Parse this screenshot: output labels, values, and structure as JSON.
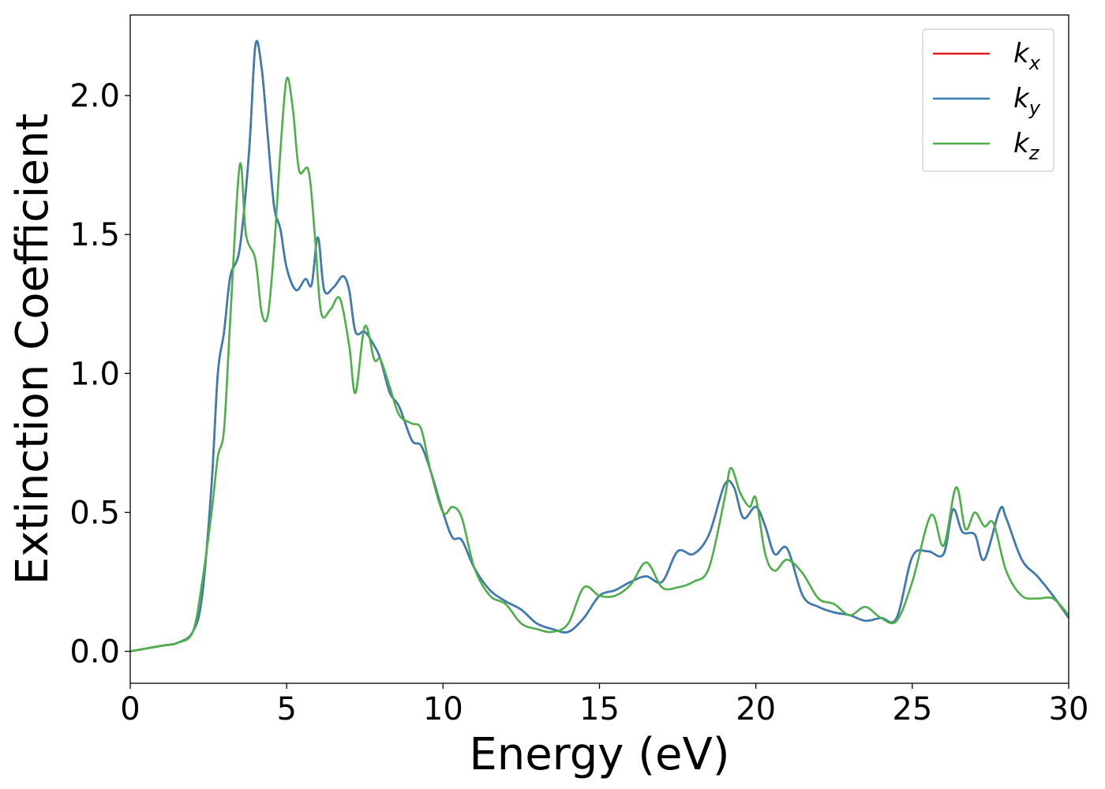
{
  "chart_data": {
    "type": "line",
    "xlabel": "Energy (eV)",
    "ylabel": "Extinction Coefficient",
    "xlim": [
      0,
      30
    ],
    "ylim": [
      -0.115,
      2.29
    ],
    "x_ticks": [
      "0",
      "5",
      "10",
      "15",
      "20",
      "25",
      "30"
    ],
    "y_ticks": [
      "0.0",
      "0.5",
      "1.0",
      "1.5",
      "2.0"
    ],
    "grid": false,
    "legend_position": "top-right",
    "series": [
      {
        "name": "k_x",
        "legend_base": "k",
        "legend_sub": "x",
        "color": "#e41a1c",
        "x": [
          0,
          1,
          1.5,
          2,
          2.3,
          2.6,
          2.8,
          3.0,
          3.2,
          3.5,
          3.8,
          4.0,
          4.2,
          4.4,
          4.6,
          4.8,
          5.0,
          5.3,
          5.6,
          5.8,
          6.0,
          6.2,
          6.5,
          6.8,
          7.0,
          7.2,
          7.5,
          7.8,
          8.0,
          8.3,
          8.6,
          9.0,
          9.3,
          9.6,
          10.0,
          10.3,
          10.6,
          11.0,
          11.5,
          12.0,
          12.5,
          13.0,
          13.5,
          14.0,
          14.5,
          15.0,
          15.5,
          16.0,
          16.5,
          17.0,
          17.5,
          18.0,
          18.5,
          19.0,
          19.3,
          19.6,
          20.0,
          20.3,
          20.6,
          21.0,
          21.5,
          22.0,
          22.5,
          23.0,
          23.5,
          24.0,
          24.5,
          25.0,
          25.5,
          26.0,
          26.3,
          26.6,
          27.0,
          27.3,
          27.8,
          28.0,
          28.5,
          29.0,
          29.5,
          30.0
        ],
        "y": [
          0.0,
          0.02,
          0.03,
          0.07,
          0.2,
          0.6,
          1.0,
          1.15,
          1.35,
          1.45,
          1.8,
          2.18,
          2.1,
          1.85,
          1.6,
          1.52,
          1.38,
          1.3,
          1.34,
          1.32,
          1.49,
          1.3,
          1.31,
          1.35,
          1.3,
          1.15,
          1.15,
          1.1,
          1.05,
          0.93,
          0.88,
          0.76,
          0.74,
          0.65,
          0.5,
          0.41,
          0.4,
          0.3,
          0.22,
          0.18,
          0.15,
          0.1,
          0.08,
          0.07,
          0.12,
          0.2,
          0.22,
          0.25,
          0.27,
          0.25,
          0.36,
          0.35,
          0.42,
          0.6,
          0.59,
          0.48,
          0.52,
          0.45,
          0.35,
          0.37,
          0.2,
          0.16,
          0.14,
          0.13,
          0.11,
          0.12,
          0.12,
          0.34,
          0.36,
          0.35,
          0.51,
          0.43,
          0.42,
          0.33,
          0.51,
          0.48,
          0.33,
          0.27,
          0.2,
          0.12
        ]
      },
      {
        "name": "k_y",
        "legend_base": "k",
        "legend_sub": "y",
        "color": "#377eb8",
        "x": [
          0,
          1,
          1.5,
          2,
          2.3,
          2.6,
          2.8,
          3.0,
          3.2,
          3.5,
          3.8,
          4.0,
          4.2,
          4.4,
          4.6,
          4.8,
          5.0,
          5.3,
          5.6,
          5.8,
          6.0,
          6.2,
          6.5,
          6.8,
          7.0,
          7.2,
          7.5,
          7.8,
          8.0,
          8.3,
          8.6,
          9.0,
          9.3,
          9.6,
          10.0,
          10.3,
          10.6,
          11.0,
          11.5,
          12.0,
          12.5,
          13.0,
          13.5,
          14.0,
          14.5,
          15.0,
          15.5,
          16.0,
          16.5,
          17.0,
          17.5,
          18.0,
          18.5,
          19.0,
          19.3,
          19.6,
          20.0,
          20.3,
          20.6,
          21.0,
          21.5,
          22.0,
          22.5,
          23.0,
          23.5,
          24.0,
          24.5,
          25.0,
          25.5,
          26.0,
          26.3,
          26.6,
          27.0,
          27.3,
          27.8,
          28.0,
          28.5,
          29.0,
          29.5,
          30.0
        ],
        "y": [
          0.0,
          0.02,
          0.03,
          0.07,
          0.2,
          0.6,
          1.0,
          1.15,
          1.35,
          1.45,
          1.8,
          2.18,
          2.1,
          1.85,
          1.6,
          1.52,
          1.38,
          1.3,
          1.34,
          1.32,
          1.49,
          1.3,
          1.31,
          1.35,
          1.3,
          1.15,
          1.15,
          1.1,
          1.05,
          0.93,
          0.88,
          0.76,
          0.74,
          0.65,
          0.5,
          0.41,
          0.4,
          0.3,
          0.22,
          0.18,
          0.15,
          0.1,
          0.08,
          0.07,
          0.12,
          0.2,
          0.22,
          0.25,
          0.27,
          0.25,
          0.36,
          0.35,
          0.42,
          0.6,
          0.59,
          0.48,
          0.52,
          0.45,
          0.35,
          0.37,
          0.2,
          0.16,
          0.14,
          0.13,
          0.11,
          0.12,
          0.12,
          0.34,
          0.36,
          0.35,
          0.51,
          0.43,
          0.42,
          0.33,
          0.51,
          0.48,
          0.33,
          0.27,
          0.2,
          0.12
        ]
      },
      {
        "name": "k_z",
        "legend_base": "k",
        "legend_sub": "z",
        "color": "#4daf4a",
        "x": [
          0,
          1,
          1.5,
          2,
          2.3,
          2.6,
          2.8,
          3.0,
          3.2,
          3.5,
          3.7,
          4.0,
          4.2,
          4.4,
          4.6,
          4.8,
          5.0,
          5.2,
          5.4,
          5.7,
          5.9,
          6.1,
          6.4,
          6.7,
          7.0,
          7.2,
          7.5,
          7.8,
          8.0,
          8.3,
          8.6,
          9.0,
          9.3,
          9.6,
          10.0,
          10.3,
          10.6,
          11.0,
          11.5,
          12.0,
          12.5,
          13.0,
          13.5,
          14.0,
          14.5,
          15.0,
          15.5,
          16.0,
          16.5,
          17.0,
          17.5,
          18.0,
          18.5,
          19.0,
          19.2,
          19.5,
          19.8,
          20.0,
          20.3,
          20.6,
          21.0,
          21.5,
          22.0,
          22.5,
          23.0,
          23.5,
          24.0,
          24.5,
          25.0,
          25.6,
          26.0,
          26.4,
          26.7,
          27.0,
          27.3,
          27.6,
          28.0,
          28.5,
          29.0,
          29.5,
          30.0
        ],
        "y": [
          0.0,
          0.02,
          0.03,
          0.07,
          0.25,
          0.5,
          0.7,
          0.8,
          1.2,
          1.75,
          1.5,
          1.41,
          1.22,
          1.21,
          1.45,
          1.8,
          2.06,
          1.95,
          1.73,
          1.73,
          1.5,
          1.22,
          1.23,
          1.27,
          1.1,
          0.93,
          1.17,
          1.05,
          1.05,
          0.95,
          0.85,
          0.82,
          0.8,
          0.65,
          0.5,
          0.52,
          0.48,
          0.3,
          0.2,
          0.17,
          0.1,
          0.08,
          0.07,
          0.1,
          0.23,
          0.2,
          0.2,
          0.24,
          0.32,
          0.23,
          0.23,
          0.25,
          0.3,
          0.55,
          0.66,
          0.57,
          0.52,
          0.55,
          0.35,
          0.29,
          0.33,
          0.28,
          0.19,
          0.17,
          0.13,
          0.16,
          0.12,
          0.11,
          0.25,
          0.49,
          0.38,
          0.59,
          0.44,
          0.5,
          0.45,
          0.46,
          0.29,
          0.2,
          0.19,
          0.19,
          0.13
        ]
      }
    ]
  }
}
